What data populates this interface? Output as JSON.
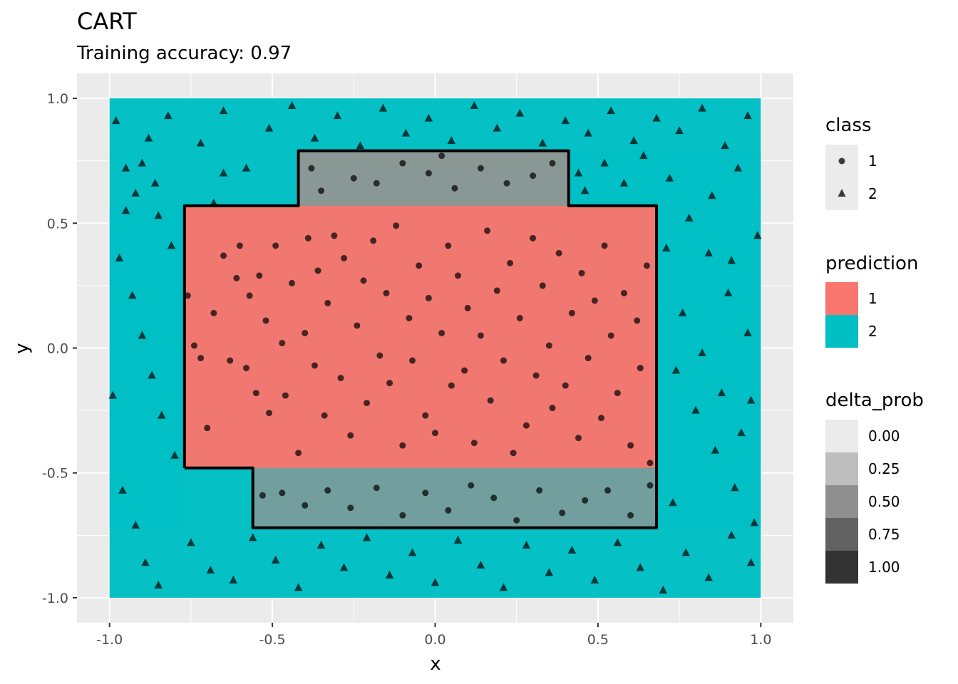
{
  "title": "CART",
  "subtitle": "Training accuracy: 0.97",
  "chart_data": {
    "type": "scatter",
    "title": "CART",
    "subtitle": "Training accuracy: 0.97",
    "xlabel": "x",
    "ylabel": "y",
    "xlim": [
      -1.1,
      1.1
    ],
    "ylim": [
      -1.1,
      1.1
    ],
    "x_ticks": [
      -1.0,
      -0.5,
      0.0,
      0.5,
      1.0
    ],
    "y_ticks": [
      -1.0,
      -0.5,
      0.0,
      0.5,
      1.0
    ],
    "x_tick_labels": [
      "-1.0",
      "-0.5",
      "0.0",
      "0.5",
      "1.0"
    ],
    "y_tick_labels": [
      "-1.0",
      "-0.5",
      "0.0",
      "0.5",
      "1.0"
    ],
    "grid": true,
    "panel_background": "#EBEBEB",
    "prediction_colors": {
      "1": "#F8766D",
      "2": "#00BFC4"
    },
    "prediction_regions": [
      {
        "prediction": "2",
        "delta_prob": 0.98,
        "x": [
          -1.0,
          1.0
        ],
        "y": [
          -1.0,
          1.0
        ]
      },
      {
        "prediction": "2",
        "delta_prob": 0.85,
        "x": [
          0.41,
          1.0
        ],
        "y": [
          0.57,
          0.79
        ]
      },
      {
        "prediction": "2",
        "delta_prob": 0.82,
        "x": [
          0.68,
          1.0
        ],
        "y": [
          -0.72,
          0.57
        ]
      },
      {
        "prediction": "2",
        "delta_prob": 0.92,
        "x": [
          -1.0,
          -0.77
        ],
        "y": [
          -0.72,
          0.57
        ]
      },
      {
        "prediction": "1",
        "delta_prob": 0.55,
        "x": [
          -0.42,
          0.41
        ],
        "y": [
          0.57,
          0.79
        ]
      },
      {
        "prediction": "1",
        "delta_prob": 0.97,
        "x": [
          -0.77,
          0.68
        ],
        "y": [
          -0.48,
          0.57
        ]
      },
      {
        "prediction": "1",
        "delta_prob": 0.45,
        "x": [
          -0.56,
          0.68
        ],
        "y": [
          -0.72,
          -0.48
        ]
      }
    ],
    "decision_boundary": [
      [
        -0.77,
        -0.48
      ],
      [
        -0.77,
        0.57
      ],
      [
        -0.42,
        0.57
      ],
      [
        -0.42,
        0.79
      ],
      [
        0.41,
        0.79
      ],
      [
        0.41,
        0.57
      ],
      [
        0.68,
        0.57
      ],
      [
        0.68,
        -0.72
      ],
      [
        -0.56,
        -0.72
      ],
      [
        -0.56,
        -0.48
      ],
      [
        -0.77,
        -0.48
      ]
    ],
    "series": [
      {
        "name": "1",
        "shape": "circle",
        "points": [
          [
            -0.76,
            0.21
          ],
          [
            -0.74,
            0.01
          ],
          [
            -0.72,
            -0.04
          ],
          [
            -0.7,
            -0.32
          ],
          [
            -0.68,
            0.14
          ],
          [
            -0.65,
            0.37
          ],
          [
            -0.63,
            -0.05
          ],
          [
            -0.61,
            0.28
          ],
          [
            -0.6,
            0.41
          ],
          [
            -0.58,
            -0.08
          ],
          [
            -0.57,
            0.21
          ],
          [
            -0.55,
            -0.18
          ],
          [
            -0.54,
            0.29
          ],
          [
            -0.52,
            0.11
          ],
          [
            -0.51,
            -0.26
          ],
          [
            -0.49,
            0.41
          ],
          [
            -0.47,
            0.02
          ],
          [
            -0.46,
            -0.19
          ],
          [
            -0.44,
            0.26
          ],
          [
            -0.42,
            -0.42
          ],
          [
            -0.4,
            0.06
          ],
          [
            -0.39,
            0.44
          ],
          [
            -0.37,
            -0.07
          ],
          [
            -0.36,
            0.31
          ],
          [
            -0.34,
            -0.27
          ],
          [
            -0.33,
            0.18
          ],
          [
            -0.31,
            0.45
          ],
          [
            -0.29,
            -0.12
          ],
          [
            -0.28,
            0.36
          ],
          [
            -0.26,
            -0.35
          ],
          [
            -0.24,
            0.09
          ],
          [
            -0.22,
            0.27
          ],
          [
            -0.21,
            -0.22
          ],
          [
            -0.19,
            0.43
          ],
          [
            -0.17,
            -0.03
          ],
          [
            -0.15,
            0.22
          ],
          [
            -0.14,
            -0.14
          ],
          [
            -0.12,
            0.49
          ],
          [
            -0.1,
            -0.39
          ],
          [
            -0.08,
            0.12
          ],
          [
            -0.07,
            -0.05
          ],
          [
            -0.05,
            0.33
          ],
          [
            -0.03,
            -0.27
          ],
          [
            -0.02,
            0.2
          ],
          [
            0.0,
            -0.34
          ],
          [
            0.02,
            0.06
          ],
          [
            0.04,
            0.41
          ],
          [
            0.05,
            -0.15
          ],
          [
            0.07,
            0.29
          ],
          [
            0.09,
            -0.09
          ],
          [
            0.1,
            0.16
          ],
          [
            0.12,
            -0.38
          ],
          [
            0.14,
            0.05
          ],
          [
            0.16,
            0.47
          ],
          [
            0.17,
            -0.21
          ],
          [
            0.19,
            0.23
          ],
          [
            0.21,
            -0.05
          ],
          [
            0.23,
            0.34
          ],
          [
            0.24,
            -0.42
          ],
          [
            0.26,
            0.12
          ],
          [
            0.28,
            -0.31
          ],
          [
            0.3,
            0.44
          ],
          [
            0.31,
            -0.11
          ],
          [
            0.33,
            0.25
          ],
          [
            0.35,
            0.01
          ],
          [
            0.36,
            -0.24
          ],
          [
            0.38,
            0.38
          ],
          [
            0.4,
            -0.15
          ],
          [
            0.42,
            0.14
          ],
          [
            0.44,
            -0.36
          ],
          [
            0.45,
            0.3
          ],
          [
            0.47,
            -0.04
          ],
          [
            0.49,
            0.19
          ],
          [
            0.51,
            -0.28
          ],
          [
            0.52,
            0.41
          ],
          [
            0.54,
            0.05
          ],
          [
            0.56,
            -0.18
          ],
          [
            0.58,
            0.22
          ],
          [
            0.6,
            -0.39
          ],
          [
            0.62,
            0.11
          ],
          [
            0.63,
            -0.08
          ],
          [
            0.65,
            0.33
          ],
          [
            0.66,
            -0.46
          ],
          [
            -0.35,
            0.63
          ],
          [
            -0.25,
            0.68
          ],
          [
            -0.18,
            0.66
          ],
          [
            -0.1,
            0.74
          ],
          [
            -0.02,
            0.7
          ],
          [
            0.06,
            0.64
          ],
          [
            0.14,
            0.72
          ],
          [
            0.22,
            0.66
          ],
          [
            0.3,
            0.69
          ],
          [
            0.36,
            0.74
          ],
          [
            -0.38,
            0.72
          ],
          [
            0.02,
            0.77
          ],
          [
            -0.53,
            -0.59
          ],
          [
            -0.47,
            -0.58
          ],
          [
            -0.4,
            -0.63
          ],
          [
            -0.33,
            -0.57
          ],
          [
            -0.26,
            -0.64
          ],
          [
            -0.18,
            -0.56
          ],
          [
            -0.1,
            -0.67
          ],
          [
            -0.03,
            -0.58
          ],
          [
            0.04,
            -0.65
          ],
          [
            0.11,
            -0.55
          ],
          [
            0.18,
            -0.6
          ],
          [
            0.25,
            -0.69
          ],
          [
            0.32,
            -0.57
          ],
          [
            0.39,
            -0.66
          ],
          [
            0.46,
            -0.61
          ],
          [
            0.53,
            -0.57
          ],
          [
            0.6,
            -0.67
          ],
          [
            0.66,
            -0.55
          ]
        ]
      },
      {
        "name": "2",
        "shape": "triangle",
        "points": [
          [
            -0.98,
            0.91
          ],
          [
            -0.95,
            0.72
          ],
          [
            -0.92,
            0.62
          ],
          [
            -0.88,
            0.84
          ],
          [
            -0.85,
            0.53
          ],
          [
            -0.82,
            0.93
          ],
          [
            -0.97,
            0.36
          ],
          [
            -0.93,
            0.21
          ],
          [
            -0.9,
            0.05
          ],
          [
            -0.87,
            -0.11
          ],
          [
            -0.84,
            -0.27
          ],
          [
            -0.8,
            -0.43
          ],
          [
            -0.96,
            -0.57
          ],
          [
            -0.92,
            -0.71
          ],
          [
            -0.89,
            -0.86
          ],
          [
            -0.85,
            -0.95
          ],
          [
            -0.81,
            0.41
          ],
          [
            -0.99,
            -0.19
          ],
          [
            -0.95,
            0.55
          ],
          [
            -0.86,
            0.66
          ],
          [
            -0.75,
            -0.78
          ],
          [
            -0.69,
            -0.89
          ],
          [
            -0.62,
            -0.93
          ],
          [
            -0.56,
            -0.76
          ],
          [
            -0.49,
            -0.85
          ],
          [
            -0.42,
            -0.96
          ],
          [
            -0.35,
            -0.79
          ],
          [
            -0.28,
            -0.88
          ],
          [
            -0.21,
            -0.76
          ],
          [
            -0.14,
            -0.91
          ],
          [
            -0.07,
            -0.82
          ],
          [
            0.0,
            -0.94
          ],
          [
            0.07,
            -0.77
          ],
          [
            0.14,
            -0.87
          ],
          [
            0.21,
            -0.96
          ],
          [
            0.28,
            -0.79
          ],
          [
            0.35,
            -0.9
          ],
          [
            0.42,
            -0.81
          ],
          [
            0.49,
            -0.93
          ],
          [
            0.56,
            -0.78
          ],
          [
            0.63,
            -0.88
          ],
          [
            0.7,
            -0.97
          ],
          [
            0.77,
            -0.82
          ],
          [
            0.84,
            -0.92
          ],
          [
            0.91,
            -0.75
          ],
          [
            0.97,
            -0.86
          ],
          [
            -0.72,
            0.82
          ],
          [
            -0.65,
            0.95
          ],
          [
            -0.58,
            0.72
          ],
          [
            -0.51,
            0.88
          ],
          [
            -0.44,
            0.97
          ],
          [
            -0.37,
            0.84
          ],
          [
            -0.3,
            0.93
          ],
          [
            -0.23,
            0.81
          ],
          [
            -0.16,
            0.96
          ],
          [
            -0.09,
            0.86
          ],
          [
            -0.02,
            0.92
          ],
          [
            0.05,
            0.83
          ],
          [
            0.12,
            0.97
          ],
          [
            0.19,
            0.88
          ],
          [
            0.26,
            0.94
          ],
          [
            0.33,
            0.82
          ],
          [
            0.4,
            0.91
          ],
          [
            0.47,
            0.86
          ],
          [
            0.54,
            0.95
          ],
          [
            0.61,
            0.83
          ],
          [
            0.68,
            0.92
          ],
          [
            0.75,
            0.87
          ],
          [
            0.82,
            0.96
          ],
          [
            0.89,
            0.81
          ],
          [
            0.96,
            0.93
          ],
          [
            0.72,
            0.68
          ],
          [
            0.78,
            0.52
          ],
          [
            0.84,
            0.38
          ],
          [
            0.9,
            0.22
          ],
          [
            0.96,
            0.06
          ],
          [
            0.74,
            -0.09
          ],
          [
            0.8,
            -0.25
          ],
          [
            0.86,
            -0.41
          ],
          [
            0.92,
            -0.56
          ],
          [
            0.98,
            -0.7
          ],
          [
            0.76,
            0.14
          ],
          [
            0.82,
            -0.02
          ],
          [
            0.88,
            -0.18
          ],
          [
            0.94,
            -0.34
          ],
          [
            0.99,
            0.45
          ],
          [
            0.71,
            0.4
          ],
          [
            0.73,
            -0.62
          ],
          [
            0.85,
            0.61
          ],
          [
            0.93,
            0.72
          ],
          [
            0.46,
            0.63
          ],
          [
            0.52,
            0.74
          ],
          [
            0.58,
            0.66
          ],
          [
            0.64,
            0.77
          ],
          [
            0.44,
            0.7
          ],
          [
            -0.65,
            0.7
          ],
          [
            -0.68,
            0.58
          ],
          [
            -0.9,
            0.74
          ],
          [
            0.97,
            -0.21
          ],
          [
            0.91,
            0.35
          ]
        ]
      }
    ]
  },
  "legend": {
    "class": {
      "title": "class",
      "items": [
        "1",
        "2"
      ]
    },
    "prediction": {
      "title": "prediction",
      "items": [
        "1",
        "2"
      ]
    },
    "delta_prob": {
      "title": "delta_prob",
      "items": [
        "0.00",
        "0.25",
        "0.50",
        "0.75",
        "1.00"
      ],
      "fills": [
        "#EBEBEB",
        "#BEBEBE",
        "#8F8F8F",
        "#626262",
        "#333333"
      ]
    }
  }
}
